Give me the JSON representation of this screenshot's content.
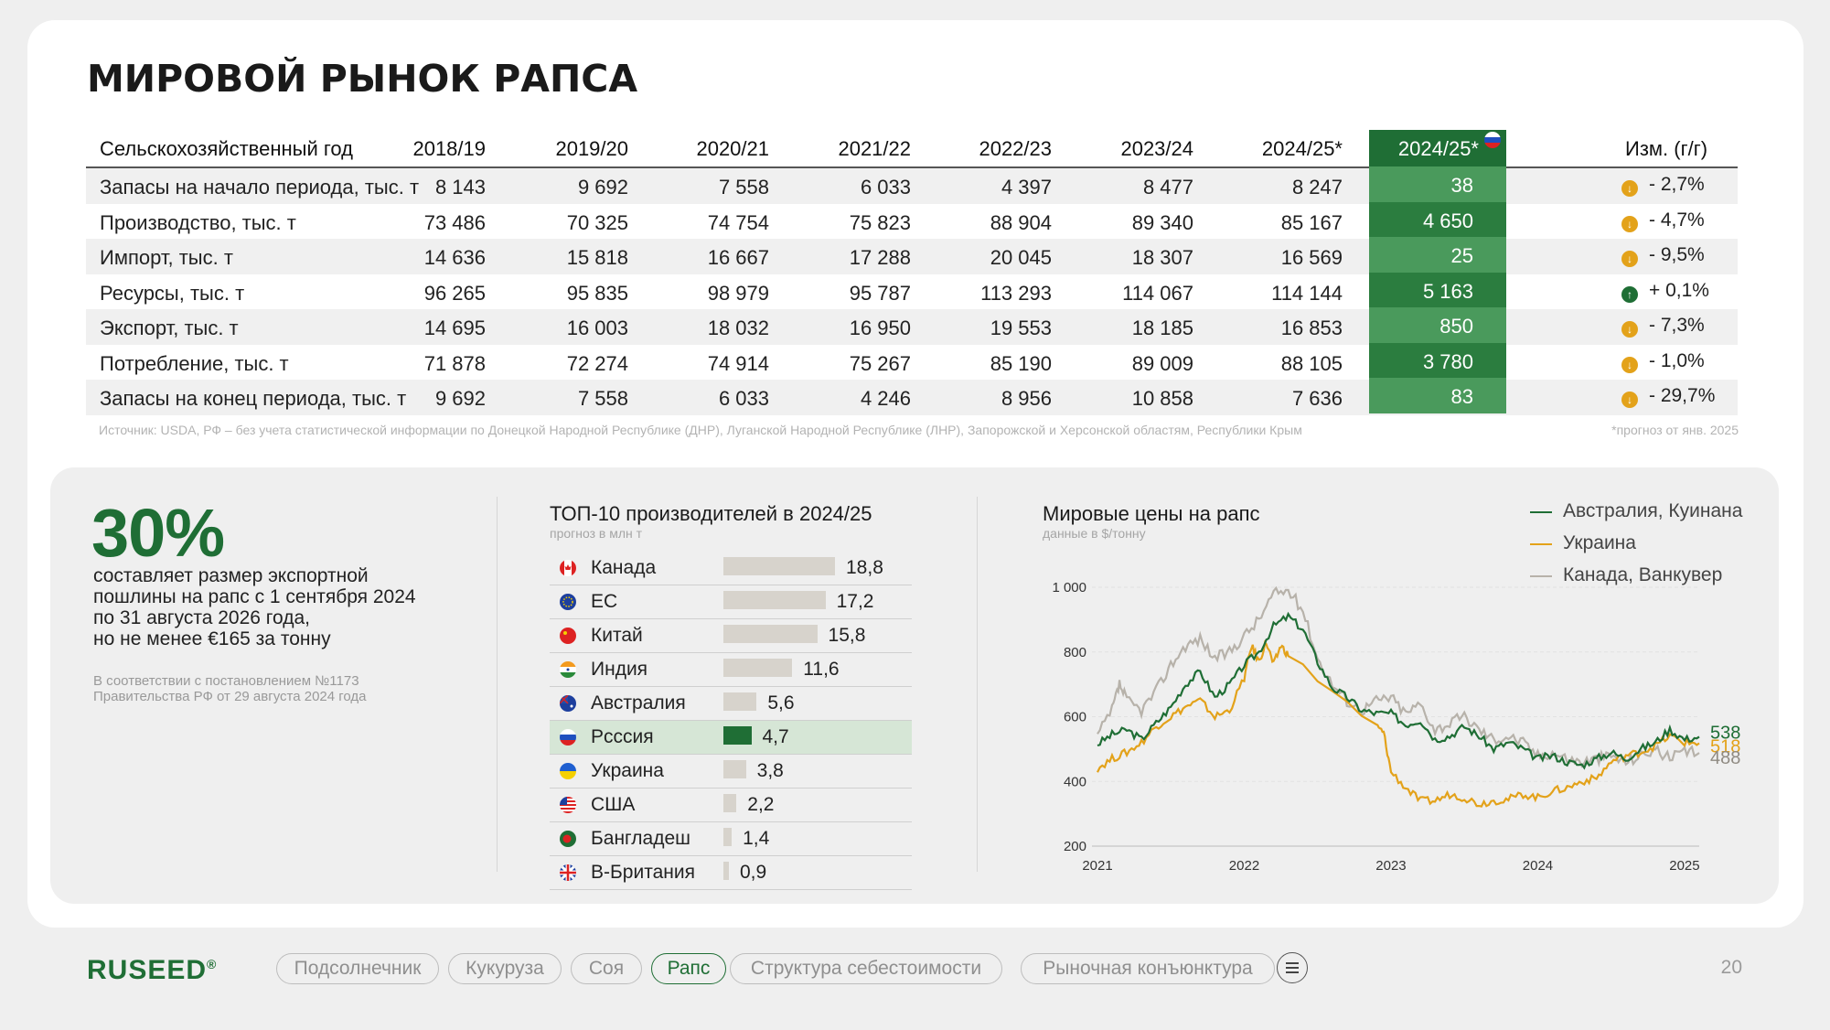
{
  "title": "МИРОВОЙ РЫНОК РАПСА",
  "table": {
    "header_label": "Сельскохозяйственный год",
    "years": [
      "2018/19",
      "2019/20",
      "2020/21",
      "2021/22",
      "2022/23",
      "2023/24",
      "2024/25*"
    ],
    "ru_header": "2024/25*",
    "change_header": "Изм. (г/г)",
    "rows": [
      {
        "label": "Запасы на начало периода, тыс. т",
        "values": [
          "8 143",
          "9 692",
          "7 558",
          "6 033",
          "4 397",
          "8 477",
          "8 247"
        ],
        "ru": "38",
        "change": "- 2,7%",
        "dir": "down"
      },
      {
        "label": "Производство, тыс. т",
        "values": [
          "73 486",
          "70 325",
          "74 754",
          "75 823",
          "88 904",
          "89 340",
          "85 167"
        ],
        "ru": "4 650",
        "change": "- 4,7%",
        "dir": "down"
      },
      {
        "label": "Импорт, тыс. т",
        "values": [
          "14 636",
          "15 818",
          "16 667",
          "17 288",
          "20 045",
          "18 307",
          "16 569"
        ],
        "ru": "25",
        "change": "- 9,5%",
        "dir": "down"
      },
      {
        "label": "Ресурсы, тыс. т",
        "values": [
          "96 265",
          "95 835",
          "98 979",
          "95 787",
          "113 293",
          "114 067",
          "114 144"
        ],
        "ru": "5 163",
        "change": "+ 0,1%",
        "dir": "up"
      },
      {
        "label": "Экспорт, тыс. т",
        "values": [
          "14 695",
          "16 003",
          "18 032",
          "16 950",
          "19 553",
          "18 185",
          "16 853"
        ],
        "ru": "850",
        "change": "- 7,3%",
        "dir": "down"
      },
      {
        "label": "Потребление, тыс. т",
        "values": [
          "71 878",
          "72 274",
          "74 914",
          "75 267",
          "85 190",
          "89 009",
          "88 105"
        ],
        "ru": "3 780",
        "change": "- 1,0%",
        "dir": "down"
      },
      {
        "label": "Запасы на конец периода, тыс. т",
        "values": [
          "9 692",
          "7 558",
          "6 033",
          "4 246",
          "8 956",
          "10 858",
          "7 636"
        ],
        "ru": "83",
        "change": "- 29,7%",
        "dir": "down"
      }
    ],
    "source": "Источник: USDA, РФ – без учета статистической информации по Донецкой Народной Республике (ДНР), Луганской Народной Республике (ЛНР), Запорожской и Херсонской областям, Республики Крым",
    "forecast_note": "*прогноз от янв. 2025"
  },
  "duty": {
    "big": "30%",
    "lines": [
      "составляет размер экспортной",
      "пошлины на рапс с 1 сентября 2024",
      "по 31 августа 2026 года,",
      "но не менее €165 за тонну"
    ],
    "note": [
      "В соответствии с постановлением №1173",
      "Правительства РФ от 29 августа 2024 года"
    ]
  },
  "producers": {
    "title": "ТОП-10 производителей в 2024/25",
    "subtitle": "прогноз в млн т",
    "items": [
      {
        "name": "Канада",
        "value": 18.8,
        "label": "18,8",
        "flag": "ca"
      },
      {
        "name": "ЕС",
        "value": 17.2,
        "label": "17,2",
        "flag": "eu"
      },
      {
        "name": "Китай",
        "value": 15.8,
        "label": "15,8",
        "flag": "cn"
      },
      {
        "name": "Индия",
        "value": 11.6,
        "label": "11,6",
        "flag": "in"
      },
      {
        "name": "Австралия",
        "value": 5.6,
        "label": "5,6",
        "flag": "au"
      },
      {
        "name": "Рсссия",
        "value": 4.7,
        "label": "4,7",
        "flag": "ru",
        "highlight": true
      },
      {
        "name": "Украина",
        "value": 3.8,
        "label": "3,8",
        "flag": "ua"
      },
      {
        "name": "США",
        "value": 2.2,
        "label": "2,2",
        "flag": "us"
      },
      {
        "name": "Бангладеш",
        "value": 1.4,
        "label": "1,4",
        "flag": "bd"
      },
      {
        "name": "В-Британия",
        "value": 0.9,
        "label": "0,9",
        "flag": "gb"
      }
    ]
  },
  "chart_data": {
    "type": "line",
    "title": "Мировые цены на рапс",
    "subtitle": "данные в $/тонну",
    "ylim": [
      200,
      1000
    ],
    "yticks": [
      "200",
      "400",
      "600",
      "800",
      "1 000"
    ],
    "xticks": [
      "2021",
      "2022",
      "2023",
      "2024",
      "2025"
    ],
    "xlim": [
      2021,
      2025.1
    ],
    "series": [
      {
        "name": "Австралия, Куинана",
        "color": "#1f6e35",
        "end_label": "538",
        "points": [
          [
            2021.0,
            515
          ],
          [
            2021.1,
            545
          ],
          [
            2021.2,
            560
          ],
          [
            2021.3,
            530
          ],
          [
            2021.4,
            580
          ],
          [
            2021.5,
            630
          ],
          [
            2021.6,
            700
          ],
          [
            2021.7,
            740
          ],
          [
            2021.8,
            660
          ],
          [
            2021.9,
            700
          ],
          [
            2022.0,
            760
          ],
          [
            2022.1,
            800
          ],
          [
            2022.2,
            880
          ],
          [
            2022.3,
            910
          ],
          [
            2022.4,
            870
          ],
          [
            2022.5,
            770
          ],
          [
            2022.6,
            690
          ],
          [
            2022.7,
            660
          ],
          [
            2022.8,
            620
          ],
          [
            2022.9,
            610
          ],
          [
            2023.0,
            610
          ],
          [
            2023.1,
            575
          ],
          [
            2023.2,
            590
          ],
          [
            2023.3,
            530
          ],
          [
            2023.4,
            540
          ],
          [
            2023.5,
            570
          ],
          [
            2023.6,
            540
          ],
          [
            2023.7,
            500
          ],
          [
            2023.8,
            520
          ],
          [
            2023.9,
            500
          ],
          [
            2024.0,
            470
          ],
          [
            2024.1,
            480
          ],
          [
            2024.2,
            460
          ],
          [
            2024.3,
            450
          ],
          [
            2024.4,
            470
          ],
          [
            2024.5,
            490
          ],
          [
            2024.6,
            470
          ],
          [
            2024.7,
            500
          ],
          [
            2024.8,
            520
          ],
          [
            2024.9,
            560
          ],
          [
            2025.0,
            530
          ],
          [
            2025.1,
            538
          ]
        ]
      },
      {
        "name": "Украина",
        "color": "#e3a21a",
        "end_label": "518",
        "points": [
          [
            2021.0,
            440
          ],
          [
            2021.1,
            470
          ],
          [
            2021.2,
            490
          ],
          [
            2021.3,
            520
          ],
          [
            2021.4,
            570
          ],
          [
            2021.5,
            600
          ],
          [
            2021.6,
            630
          ],
          [
            2021.7,
            650
          ],
          [
            2021.8,
            600
          ],
          [
            2021.9,
            620
          ],
          [
            2022.0,
            720
          ],
          [
            2022.05,
            820
          ],
          [
            2022.1,
            770
          ],
          [
            2022.15,
            830
          ],
          [
            2022.2,
            760
          ],
          [
            2022.25,
            820
          ],
          [
            2022.3,
            790
          ],
          [
            2022.9,
            570
          ],
          [
            2022.95,
            550
          ],
          [
            2023.0,
            430
          ],
          [
            2023.1,
            380
          ],
          [
            2023.2,
            340
          ],
          [
            2023.3,
            340
          ],
          [
            2023.4,
            360
          ],
          [
            2023.5,
            350
          ],
          [
            2023.6,
            330
          ],
          [
            2023.7,
            340
          ],
          [
            2023.8,
            345
          ],
          [
            2023.9,
            360
          ],
          [
            2024.0,
            350
          ],
          [
            2024.1,
            370
          ],
          [
            2024.2,
            380
          ],
          [
            2024.3,
            400
          ],
          [
            2024.4,
            410
          ],
          [
            2024.5,
            460
          ],
          [
            2024.6,
            480
          ],
          [
            2024.7,
            490
          ],
          [
            2024.8,
            510
          ],
          [
            2024.9,
            540
          ],
          [
            2025.0,
            520
          ],
          [
            2025.1,
            518
          ]
        ]
      },
      {
        "name": "Канада, Ванкувер",
        "color": "#b7b2aa",
        "end_label": "488",
        "points": [
          [
            2021.0,
            540
          ],
          [
            2021.1,
            620
          ],
          [
            2021.15,
            700
          ],
          [
            2021.2,
            650
          ],
          [
            2021.3,
            620
          ],
          [
            2021.4,
            680
          ],
          [
            2021.5,
            760
          ],
          [
            2021.6,
            820
          ],
          [
            2021.7,
            840
          ],
          [
            2021.8,
            780
          ],
          [
            2021.9,
            800
          ],
          [
            2022.0,
            850
          ],
          [
            2022.1,
            900
          ],
          [
            2022.2,
            980
          ],
          [
            2022.3,
            990
          ],
          [
            2022.4,
            930
          ],
          [
            2022.5,
            780
          ],
          [
            2022.6,
            700
          ],
          [
            2022.7,
            650
          ],
          [
            2022.8,
            620
          ],
          [
            2022.9,
            650
          ],
          [
            2023.0,
            660
          ],
          [
            2023.1,
            610
          ],
          [
            2023.2,
            640
          ],
          [
            2023.3,
            560
          ],
          [
            2023.4,
            580
          ],
          [
            2023.5,
            600
          ],
          [
            2023.6,
            560
          ],
          [
            2023.7,
            530
          ],
          [
            2023.8,
            540
          ],
          [
            2023.9,
            520
          ],
          [
            2024.0,
            480
          ],
          [
            2024.1,
            490
          ],
          [
            2024.2,
            470
          ],
          [
            2024.3,
            460
          ],
          [
            2024.4,
            470
          ],
          [
            2024.5,
            480
          ],
          [
            2024.6,
            460
          ],
          [
            2024.7,
            480
          ],
          [
            2024.8,
            500
          ],
          [
            2024.9,
            470
          ],
          [
            2025.0,
            490
          ],
          [
            2025.1,
            488
          ]
        ]
      }
    ]
  },
  "footer": {
    "logo": "RUSEED",
    "nav": [
      "Подсолнечник",
      "Кукуруза",
      "Соя",
      "Рапс",
      "Структура себестоимости",
      "Рыночная конъюнктура"
    ],
    "active": "Рапс",
    "page": "20"
  }
}
